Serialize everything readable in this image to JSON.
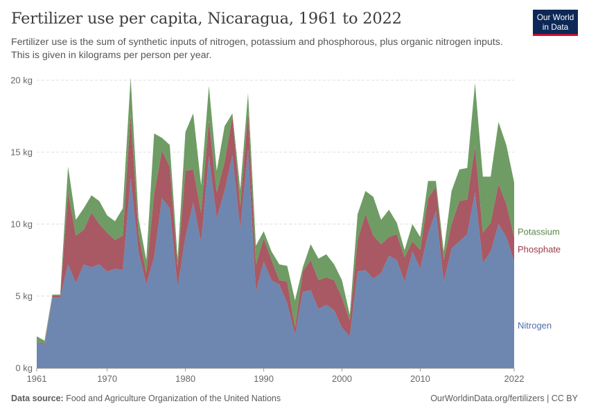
{
  "header": {
    "title": "Fertilizer use per capita, Nicaragua, 1961 to 2022",
    "subtitle": "Fertilizer use is the sum of synthetic inputs of nitrogen, potassium and phosphorous, plus organic nitrogen inputs. This is given in kilograms per person per year."
  },
  "logo": {
    "line1": "Our World",
    "line2": "in Data"
  },
  "footer": {
    "source_label": "Data source:",
    "source_text": "Food and Agriculture Organization of the United Nations",
    "link": "OurWorldinData.org/fertilizers | CC BY"
  },
  "colors": {
    "nitrogen": "#6d87b0",
    "phosphate": "#a85963",
    "potassium": "#6f9c64",
    "nitrogen_label": "#4c6fa8",
    "phosphate_label": "#9a3a46",
    "potassium_label": "#55884a",
    "grid": "#dddddd",
    "axis_text": "#666666"
  },
  "chart_data": {
    "type": "area",
    "stacked": true,
    "x": [
      1961,
      1962,
      1963,
      1964,
      1965,
      1966,
      1967,
      1968,
      1969,
      1970,
      1971,
      1972,
      1973,
      1974,
      1975,
      1976,
      1977,
      1978,
      1979,
      1980,
      1981,
      1982,
      1983,
      1984,
      1985,
      1986,
      1987,
      1988,
      1989,
      1990,
      1991,
      1992,
      1993,
      1994,
      1995,
      1996,
      1997,
      1998,
      1999,
      2000,
      2001,
      2002,
      2003,
      2004,
      2005,
      2006,
      2007,
      2008,
      2009,
      2010,
      2011,
      2012,
      2013,
      2014,
      2015,
      2016,
      2017,
      2018,
      2019,
      2020,
      2021,
      2022
    ],
    "series": [
      {
        "name": "Nitrogen",
        "values": [
          1.8,
          1.6,
          4.9,
          4.9,
          7.2,
          5.9,
          7.2,
          7.0,
          7.2,
          6.7,
          6.9,
          6.8,
          13.2,
          8.1,
          5.8,
          7.7,
          11.8,
          11.1,
          5.6,
          9.1,
          11.5,
          8.7,
          14.7,
          10.4,
          12.3,
          14.8,
          9.7,
          15.2,
          5.3,
          7.4,
          6.1,
          5.8,
          4.5,
          2.3,
          5.3,
          5.4,
          4.1,
          4.4,
          4.0,
          2.8,
          2.2,
          6.7,
          6.8,
          6.2,
          6.6,
          7.8,
          7.5,
          6.0,
          8.1,
          6.9,
          9.3,
          10.9,
          6.0,
          8.3,
          8.8,
          9.3,
          12.2,
          7.3,
          8.1,
          10.0,
          9.1,
          7.4
        ],
        "label_color": "#4c6fa8"
      },
      {
        "name": "Phosphate",
        "values": [
          0.0,
          0.1,
          0.1,
          0.1,
          5.0,
          3.3,
          2.4,
          3.8,
          2.8,
          2.7,
          2.0,
          2.4,
          4.4,
          1.2,
          0.8,
          4.4,
          3.3,
          2.9,
          1.4,
          4.6,
          2.3,
          2.1,
          2.5,
          1.8,
          2.0,
          2.7,
          1.5,
          2.6,
          1.9,
          1.6,
          1.4,
          0.3,
          1.5,
          0.5,
          1.4,
          2.1,
          2.0,
          1.9,
          2.1,
          2.1,
          1.1,
          2.2,
          3.9,
          3.0,
          2.0,
          1.3,
          1.8,
          1.7,
          0.7,
          1.3,
          2.5,
          1.7,
          1.5,
          1.7,
          2.8,
          2.4,
          3.2,
          2.1,
          2.0,
          2.8,
          2.3,
          1.7
        ],
        "label_color": "#9a3a46"
      },
      {
        "name": "Potassium",
        "values": [
          0.4,
          0.2,
          0.1,
          0.1,
          1.8,
          1.1,
          1.5,
          1.2,
          1.6,
          1.2,
          1.3,
          1.9,
          2.6,
          1.1,
          0.9,
          4.2,
          0.9,
          1.5,
          0.6,
          2.7,
          3.9,
          1.9,
          2.4,
          1.5,
          2.5,
          0.2,
          1.2,
          1.3,
          1.3,
          0.5,
          0.6,
          1.1,
          1.1,
          1.9,
          0.3,
          1.1,
          1.5,
          1.6,
          1.1,
          1.2,
          0.4,
          1.8,
          1.6,
          2.7,
          1.7,
          1.9,
          0.8,
          0.5,
          1.2,
          0.9,
          1.2,
          0.4,
          0.6,
          2.3,
          2.2,
          2.2,
          4.4,
          3.9,
          3.2,
          4.3,
          4.1,
          3.8
        ],
        "label_color": "#55884a"
      }
    ],
    "x_ticks": [
      "1961",
      "1970",
      "1980",
      "1990",
      "2000",
      "2010",
      "2022"
    ],
    "x_tick_values": [
      1961,
      1970,
      1980,
      1990,
      2000,
      2010,
      2022
    ],
    "y_ticks": [
      "0 kg",
      "5 kg",
      "10 kg",
      "15 kg",
      "20 kg"
    ],
    "y_tick_values": [
      0,
      5,
      10,
      15,
      20
    ],
    "ylim": [
      0,
      20
    ],
    "xlim": [
      1961,
      2022
    ],
    "grid": true,
    "legend": "right"
  }
}
